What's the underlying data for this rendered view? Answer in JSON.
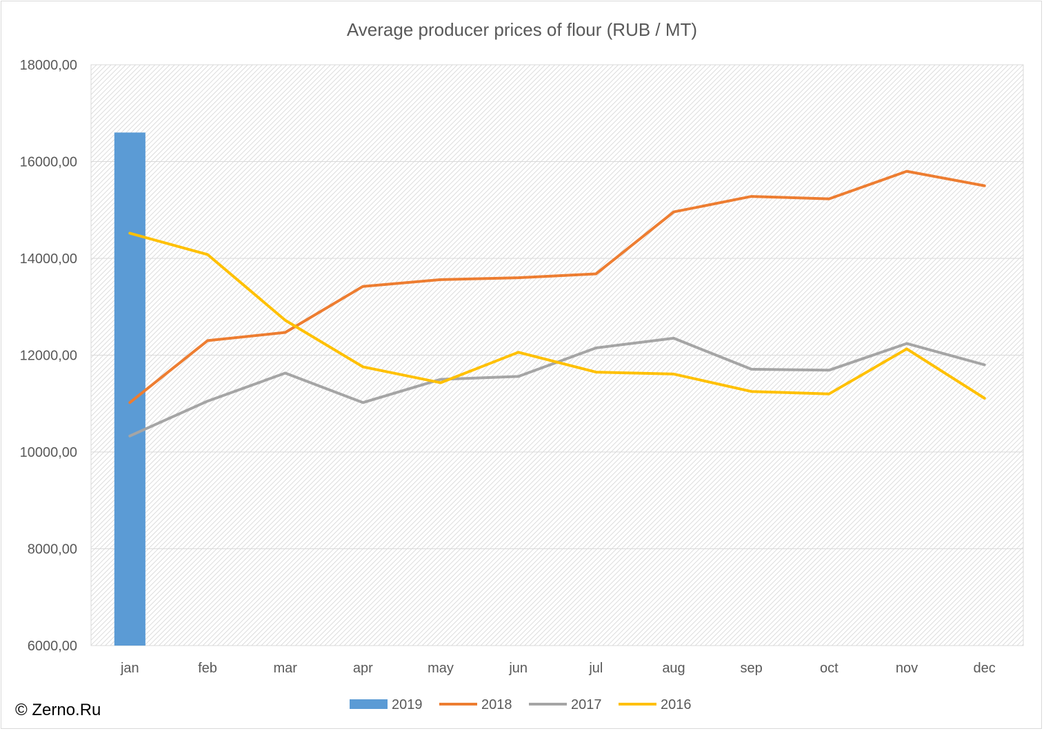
{
  "chart_data": {
    "type": "bar+line",
    "title": "Average producer prices of flour (RUB / MT)",
    "xlabel": "",
    "ylabel": "",
    "categories": [
      "jan",
      "feb",
      "mar",
      "apr",
      "may",
      "jun",
      "jul",
      "aug",
      "sep",
      "oct",
      "nov",
      "dec"
    ],
    "ylim": [
      6000,
      18000
    ],
    "yticks": [
      6000,
      8000,
      10000,
      12000,
      14000,
      16000,
      18000
    ],
    "ytick_labels": [
      "6000,00",
      "8000,00",
      "10000,00",
      "12000,00",
      "14000,00",
      "16000,00",
      "18000,00"
    ],
    "grid": true,
    "legend_position": "bottom",
    "series": [
      {
        "name": "2019",
        "type": "bar",
        "color": "#5b9bd5",
        "values": [
          16600,
          null,
          null,
          null,
          null,
          null,
          null,
          null,
          null,
          null,
          null,
          null
        ]
      },
      {
        "name": "2018",
        "type": "line",
        "color": "#ed7d31",
        "values": [
          11020,
          12300,
          12470,
          13420,
          13560,
          13600,
          13680,
          14960,
          15280,
          15230,
          15800,
          15500
        ]
      },
      {
        "name": "2017",
        "type": "line",
        "color": "#a5a5a5",
        "values": [
          10330,
          11050,
          11630,
          11020,
          11500,
          11560,
          12150,
          12350,
          11710,
          11690,
          12240,
          11800
        ]
      },
      {
        "name": "2016",
        "type": "line",
        "color": "#ffc000",
        "values": [
          14520,
          14080,
          12720,
          11760,
          11430,
          12060,
          11650,
          11610,
          11250,
          11200,
          12130,
          11110
        ]
      }
    ]
  },
  "copyright": "© Zerno.Ru"
}
